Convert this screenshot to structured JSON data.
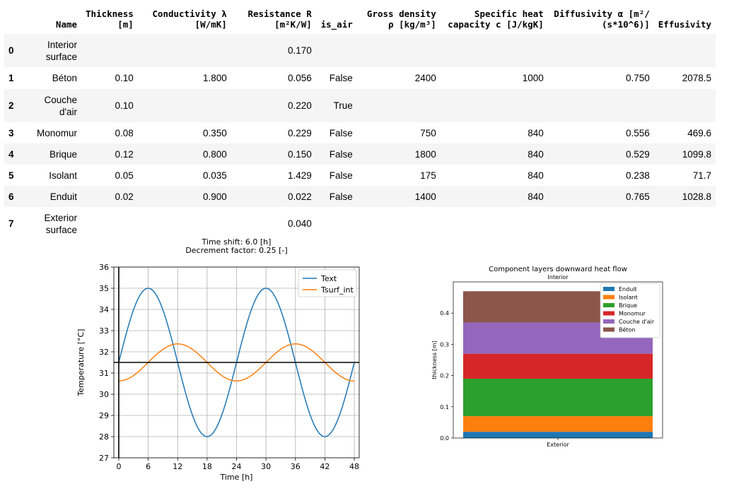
{
  "table": {
    "columns": [
      "",
      "Name",
      "Thickness\n[m]",
      "Conductivity λ\n[W/mK]",
      "Resistance R\n[m²K/W]",
      "is_air",
      "Gross density\nρ [kg/m³]",
      "Specific heat\ncapacity c [J/kgK]",
      "Diffusivity α [m²/\n(s*10^6)]",
      "Effusivity"
    ],
    "rows": [
      [
        "0",
        "Interior\nsurface",
        "",
        "",
        "0.170",
        "",
        "",
        "",
        "",
        ""
      ],
      [
        "1",
        "Béton",
        "0.10",
        "1.800",
        "0.056",
        "False",
        "2400",
        "1000",
        "0.750",
        "2078.5"
      ],
      [
        "2",
        "Couche\nd'air",
        "0.10",
        "",
        "0.220",
        "True",
        "",
        "",
        "",
        ""
      ],
      [
        "3",
        "Monomur",
        "0.08",
        "0.350",
        "0.229",
        "False",
        "750",
        "840",
        "0.556",
        "469.6"
      ],
      [
        "4",
        "Brique",
        "0.12",
        "0.800",
        "0.150",
        "False",
        "1800",
        "840",
        "0.529",
        "1099.8"
      ],
      [
        "5",
        "Isolant",
        "0.05",
        "0.035",
        "1.429",
        "False",
        "175",
        "840",
        "0.238",
        "71.7"
      ],
      [
        "6",
        "Enduit",
        "0.02",
        "0.900",
        "0.022",
        "False",
        "1400",
        "840",
        "0.765",
        "1028.8"
      ],
      [
        "7",
        "Exterior\nsurface",
        "",
        "",
        "0.040",
        "",
        "",
        "",
        "",
        ""
      ]
    ]
  },
  "chart_data": [
    {
      "type": "line",
      "title_lines": [
        "Time shift:  6.0 [h]",
        "Decrement factor: 0.25 [-]"
      ],
      "xlabel": "Time [h]",
      "ylabel": "Temperature [°C]",
      "xlim": [
        -1,
        49
      ],
      "ylim": [
        27,
        36
      ],
      "xticks": [
        0,
        6,
        12,
        18,
        24,
        30,
        36,
        42,
        48
      ],
      "yticks": [
        27,
        28,
        29,
        30,
        31,
        32,
        33,
        34,
        35,
        36
      ],
      "grid": true,
      "legend": "top-right",
      "mean": 31.5,
      "series": [
        {
          "name": "Text",
          "color": "#1f77b4",
          "amplitude": 3.5,
          "peak_hour": 6,
          "period": 24
        },
        {
          "name": "Tsurf_int",
          "color": "#ff7f0e",
          "amplitude": 0.875,
          "peak_hour": 12,
          "period": 24
        }
      ]
    },
    {
      "type": "bar",
      "stacked": true,
      "title": "Component layers downward heat flow",
      "top_label": "Interior",
      "xlabel": "Exterior",
      "ylabel": "thickness [m]",
      "ylim": [
        0,
        0.5
      ],
      "yticks": [
        0.0,
        0.1,
        0.2,
        0.3,
        0.4
      ],
      "legend": "top-right",
      "layers": [
        {
          "name": "Enduit",
          "value": 0.02,
          "color": "#1f77b4"
        },
        {
          "name": "Isolant",
          "value": 0.05,
          "color": "#ff7f0e"
        },
        {
          "name": "Brique",
          "value": 0.12,
          "color": "#2ca02c"
        },
        {
          "name": "Monomur",
          "value": 0.08,
          "color": "#d62728"
        },
        {
          "name": "Couche d'air",
          "value": 0.1,
          "color": "#9467bd"
        },
        {
          "name": "Béton",
          "value": 0.1,
          "color": "#8c564b"
        }
      ]
    }
  ]
}
